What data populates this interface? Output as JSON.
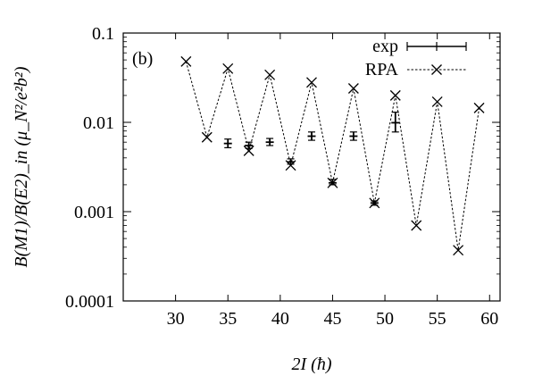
{
  "chart_data": {
    "type": "line",
    "panel_label": "(b)",
    "xlabel": "2I (ħ)",
    "ylabel": "B(M1)/B(E2)_in (μ_N²/e²b²)",
    "xlim": [
      25,
      61
    ],
    "ylim": [
      0.0001,
      0.1
    ],
    "yscale": "log",
    "grid": false,
    "legend_position": "top-right",
    "x_ticks": [
      30,
      35,
      40,
      45,
      50,
      55,
      60
    ],
    "x_tick_labels": [
      "30",
      "35",
      "40",
      "45",
      "50",
      "55",
      "60"
    ],
    "y_ticks": [
      0.0001,
      0.001,
      0.01,
      0.1
    ],
    "y_tick_labels": [
      "0.0001",
      "0.001",
      "0.01",
      "0.1"
    ],
    "series": [
      {
        "name": "exp",
        "style": "errorbar",
        "x": [
          35,
          37,
          39,
          41,
          43,
          45,
          47,
          49,
          51
        ],
        "y": [
          0.0058,
          0.0055,
          0.006,
          0.0036,
          0.007,
          0.0021,
          0.007,
          0.00125,
          0.0099
        ],
        "err_low": [
          0.0052,
          0.0051,
          0.0055,
          0.0034,
          0.0063,
          0.002,
          0.0063,
          0.00118,
          0.0078
        ],
        "err_high": [
          0.0065,
          0.006,
          0.0066,
          0.0039,
          0.0078,
          0.0023,
          0.0078,
          0.00132,
          0.013
        ]
      },
      {
        "name": "RPA",
        "style": "dashed-x",
        "x": [
          31,
          33,
          35,
          37,
          39,
          41,
          43,
          45,
          47,
          49,
          51,
          53,
          55,
          57,
          59
        ],
        "y": [
          0.048,
          0.0068,
          0.04,
          0.0048,
          0.034,
          0.0033,
          0.028,
          0.0021,
          0.024,
          0.00125,
          0.02,
          0.0007,
          0.017,
          0.00037,
          0.0145
        ]
      }
    ]
  }
}
